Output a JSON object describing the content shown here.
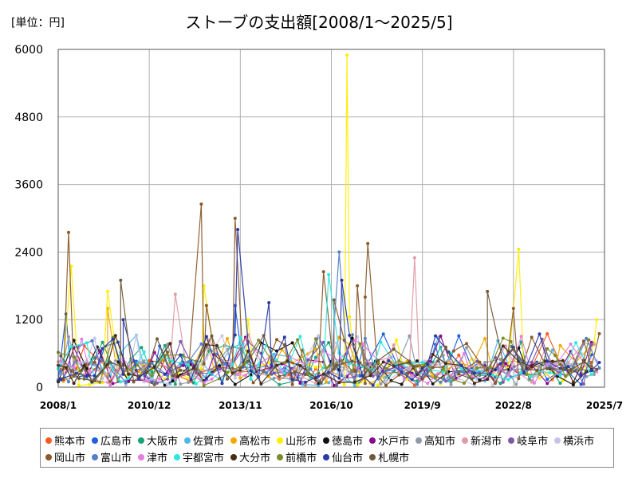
{
  "unit_label": "[単位：円]",
  "chart_data": {
    "type": "line",
    "title": "ストーブの支出額[2008/1～2025/5]",
    "xlabel": "",
    "ylabel": "",
    "x_range": [
      "2008/1",
      "2025/7"
    ],
    "ylim": [
      0,
      6000
    ],
    "y_ticks": [
      "0",
      "1200",
      "2400",
      "3600",
      "4800",
      "6000"
    ],
    "y_tick_values": [
      0,
      1200,
      2400,
      3600,
      4800,
      6000
    ],
    "x_ticks": [
      "2008/1",
      "2010/12",
      "2013/11",
      "2016/10",
      "2019/9",
      "2022/8",
      "2025/7"
    ],
    "x_tick_months": [
      0,
      35,
      70,
      105,
      140,
      175,
      210
    ],
    "total_months": 210,
    "grid": true,
    "legend_position": "bottom",
    "series": [
      {
        "name": "熊本市",
        "color": "#ff5a1f"
      },
      {
        "name": "広島市",
        "color": "#1f5fe0"
      },
      {
        "name": "大阪市",
        "color": "#1aa37a"
      },
      {
        "name": "佐賀市",
        "color": "#4fb8e8"
      },
      {
        "name": "高松市",
        "color": "#f5a800"
      },
      {
        "name": "山形市",
        "color": "#ffee00"
      },
      {
        "name": "徳島市",
        "color": "#111111"
      },
      {
        "name": "水戸市",
        "color": "#8a0a8a"
      },
      {
        "name": "高知市",
        "color": "#8e9aa6"
      },
      {
        "name": "新潟市",
        "color": "#e09aa8"
      },
      {
        "name": "岐阜市",
        "color": "#7d5aa8"
      },
      {
        "name": "横浜市",
        "color": "#c8c4e6"
      },
      {
        "name": "岡山市",
        "color": "#8b5a2b"
      },
      {
        "name": "富山市",
        "color": "#5580c8"
      },
      {
        "name": "津市",
        "color": "#e67ee0"
      },
      {
        "name": "宇都宮市",
        "color": "#2ee8e0"
      },
      {
        "name": "大分市",
        "color": "#4a2a10"
      },
      {
        "name": "前橋市",
        "color": "#7f8a2a"
      },
      {
        "name": "仙台市",
        "color": "#2a3aa8"
      },
      {
        "name": "札幌市",
        "color": "#6e5a3a"
      }
    ],
    "highlights": [
      {
        "series": "山形市",
        "x_month": 111,
        "value": 5900
      },
      {
        "series": "岡山市",
        "x_month": 55,
        "value": 3250
      },
      {
        "series": "岡山市",
        "x_month": 68,
        "value": 3000
      },
      {
        "series": "仙台市",
        "x_month": 69,
        "value": 2800
      },
      {
        "series": "岡山市",
        "x_month": 4,
        "value": 2750
      },
      {
        "series": "岡山市",
        "x_month": 119,
        "value": 2550
      },
      {
        "series": "山形市",
        "x_month": 177,
        "value": 2450
      },
      {
        "series": "富山市",
        "x_month": 108,
        "value": 2400
      },
      {
        "series": "新潟市",
        "x_month": 137,
        "value": 2300
      },
      {
        "series": "山形市",
        "x_month": 5,
        "value": 2150
      },
      {
        "series": "宇都宮市",
        "x_month": 104,
        "value": 2000
      },
      {
        "series": "岡山市",
        "x_month": 102,
        "value": 2050
      },
      {
        "series": "札幌市",
        "x_month": 24,
        "value": 1900
      },
      {
        "series": "仙台市",
        "x_month": 109,
        "value": 1900
      },
      {
        "series": "山形市",
        "x_month": 56,
        "value": 1800
      },
      {
        "series": "岡山市",
        "x_month": 115,
        "value": 1800
      },
      {
        "series": "札幌市",
        "x_month": 165,
        "value": 1700
      },
      {
        "series": "山形市",
        "x_month": 19,
        "value": 1700
      },
      {
        "series": "新潟市",
        "x_month": 45,
        "value": 1650
      },
      {
        "series": "岡山市",
        "x_month": 118,
        "value": 1600
      },
      {
        "series": "岡山市",
        "x_month": 106,
        "value": 1550
      },
      {
        "series": "岡山市",
        "x_month": 57,
        "value": 1450
      },
      {
        "series": "広島市",
        "x_month": 68,
        "value": 1450
      },
      {
        "series": "仙台市",
        "x_month": 81,
        "value": 1500
      },
      {
        "series": "岡山市",
        "x_month": 175,
        "value": 1400
      },
      {
        "series": "高松市",
        "x_month": 19,
        "value": 1400
      },
      {
        "series": "広島市",
        "x_month": 3,
        "value": 1300
      },
      {
        "series": "山形市",
        "x_month": 112,
        "value": 1250
      },
      {
        "series": "山形市",
        "x_month": 73,
        "value": 1200
      },
      {
        "series": "山形市",
        "x_month": 207,
        "value": 1200
      },
      {
        "series": "仙台市",
        "x_month": 25,
        "value": 1200
      },
      {
        "series": "岡山市",
        "x_month": 208,
        "value": 950
      }
    ]
  }
}
